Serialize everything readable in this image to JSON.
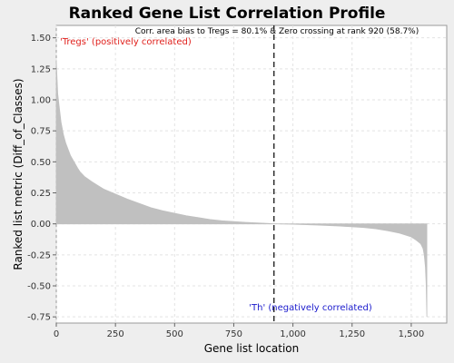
{
  "chart_data": {
    "type": "area",
    "title": "Ranked Gene List Correlation Profile",
    "xlabel": "Gene list location",
    "ylabel": "Ranked list metric (Diff_of_Classes)",
    "xlim": [
      0,
      1650
    ],
    "ylim": [
      -0.8,
      1.6
    ],
    "x_ticks": [
      0,
      250,
      500,
      750,
      1000,
      1250,
      1500
    ],
    "x_tick_labels": [
      "0",
      "250",
      "500",
      "750",
      "1,000",
      "1,250",
      "1,500"
    ],
    "y_ticks": [
      1.5,
      1.25,
      1.0,
      0.75,
      0.5,
      0.25,
      0.0,
      -0.25,
      -0.5,
      -0.75
    ],
    "y_tick_labels": [
      "1.50",
      "1.25",
      "1.00",
      "0.75",
      "0.50",
      "0.25",
      "0.00",
      "-0.25",
      "-0.50",
      "-0.75"
    ],
    "grid": true,
    "annotation_top": "Corr. area bias to Tregs = 80.1% & Zero crossing at rank 920 (58.7%)",
    "label_positive": "'Tregs' (positively correlated)",
    "label_negative": "'Th' (negatively correlated)",
    "zero_crossing_rank": 920,
    "n_genes": 1566,
    "fill_color": "#c0c0c0",
    "positive_label_color": "#e0201c",
    "negative_label_color": "#1a1acc",
    "profile": {
      "x": [
        0,
        3,
        6,
        10,
        15,
        20,
        30,
        40,
        50,
        60,
        75,
        90,
        100,
        120,
        150,
        175,
        200,
        250,
        300,
        350,
        400,
        450,
        500,
        550,
        600,
        650,
        700,
        750,
        800,
        850,
        900,
        920,
        930,
        1000,
        1100,
        1200,
        1300,
        1350,
        1400,
        1450,
        1500,
        1520,
        1540,
        1550,
        1555,
        1560,
        1563,
        1566
      ],
      "y": [
        1.32,
        1.18,
        1.05,
        0.98,
        0.9,
        0.82,
        0.72,
        0.65,
        0.6,
        0.55,
        0.5,
        0.45,
        0.42,
        0.38,
        0.34,
        0.31,
        0.28,
        0.24,
        0.2,
        0.165,
        0.13,
        0.105,
        0.085,
        0.065,
        0.05,
        0.035,
        0.025,
        0.018,
        0.012,
        0.007,
        0.003,
        0.0,
        0.0,
        -0.003,
        -0.01,
        -0.018,
        -0.03,
        -0.04,
        -0.055,
        -0.075,
        -0.105,
        -0.13,
        -0.16,
        -0.2,
        -0.25,
        -0.35,
        -0.48,
        -0.75
      ]
    }
  }
}
